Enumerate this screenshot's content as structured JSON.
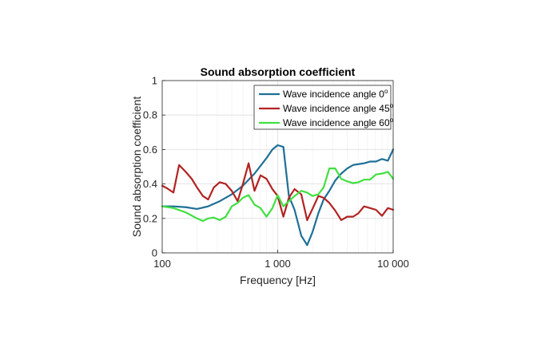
{
  "chart_data": {
    "type": "line",
    "title": "Sound absorption coefficient",
    "xlabel": "Frequency [Hz]",
    "ylabel": "Sound absorption coefficient",
    "xscale": "log",
    "xlim": [
      100,
      10000
    ],
    "ylim": [
      0,
      1
    ],
    "xticks": [
      100,
      1000,
      10000
    ],
    "xtick_labels": [
      "100",
      "1 000",
      "10 000"
    ],
    "yticks": [
      0,
      0.2,
      0.4,
      0.6,
      0.8,
      1
    ],
    "ytick_labels": [
      "0",
      "0.2",
      "0.4",
      "0.6",
      "0.8",
      "1"
    ],
    "grid": true,
    "legend_position": "top-right",
    "series": [
      {
        "name": "Wave incidence angle 0",
        "legend_sup": "o",
        "color": "#1f6f96",
        "x": [
          100,
          125,
          160,
          200,
          250,
          315,
          400,
          500,
          630,
          800,
          900,
          1000,
          1120,
          1250,
          1400,
          1600,
          1800,
          2000,
          2250,
          2500,
          2800,
          3150,
          3550,
          4000,
          4500,
          5000,
          5600,
          6300,
          7100,
          8000,
          9000,
          10000
        ],
        "y": [
          0.27,
          0.27,
          0.265,
          0.255,
          0.27,
          0.3,
          0.34,
          0.39,
          0.46,
          0.55,
          0.6,
          0.625,
          0.615,
          0.33,
          0.25,
          0.1,
          0.045,
          0.12,
          0.23,
          0.31,
          0.36,
          0.42,
          0.46,
          0.49,
          0.51,
          0.515,
          0.52,
          0.53,
          0.53,
          0.545,
          0.535,
          0.6
        ]
      },
      {
        "name": "Wave incidence angle 45",
        "legend_sup": "o",
        "color": "#b22222",
        "x": [
          100,
          110,
          125,
          140,
          160,
          180,
          200,
          225,
          250,
          280,
          315,
          355,
          400,
          450,
          500,
          560,
          630,
          710,
          800,
          900,
          1000,
          1120,
          1250,
          1400,
          1600,
          1800,
          2000,
          2250,
          2500,
          2800,
          3150,
          3550,
          4000,
          4500,
          5000,
          5600,
          6300,
          7100,
          8000,
          9000,
          10000
        ],
        "y": [
          0.39,
          0.375,
          0.35,
          0.51,
          0.47,
          0.43,
          0.38,
          0.33,
          0.31,
          0.38,
          0.41,
          0.4,
          0.36,
          0.3,
          0.4,
          0.52,
          0.36,
          0.45,
          0.43,
          0.37,
          0.33,
          0.21,
          0.32,
          0.37,
          0.34,
          0.19,
          0.255,
          0.33,
          0.32,
          0.29,
          0.245,
          0.19,
          0.21,
          0.21,
          0.23,
          0.27,
          0.26,
          0.25,
          0.215,
          0.26,
          0.25
        ]
      },
      {
        "name": "Wave incidence angle 60",
        "legend_sup": "o",
        "color": "#40e040",
        "x": [
          100,
          125,
          160,
          200,
          225,
          250,
          280,
          315,
          355,
          400,
          450,
          500,
          560,
          630,
          710,
          800,
          900,
          1000,
          1120,
          1250,
          1400,
          1600,
          1800,
          2000,
          2250,
          2500,
          2800,
          3150,
          3550,
          4000,
          4500,
          5000,
          5600,
          6300,
          7100,
          8000,
          9000,
          10000
        ],
        "y": [
          0.27,
          0.26,
          0.235,
          0.2,
          0.185,
          0.2,
          0.205,
          0.19,
          0.21,
          0.27,
          0.29,
          0.32,
          0.335,
          0.28,
          0.26,
          0.21,
          0.26,
          0.335,
          0.27,
          0.3,
          0.33,
          0.36,
          0.35,
          0.33,
          0.34,
          0.38,
          0.49,
          0.49,
          0.43,
          0.415,
          0.405,
          0.41,
          0.425,
          0.425,
          0.455,
          0.46,
          0.47,
          0.43
        ]
      }
    ]
  }
}
